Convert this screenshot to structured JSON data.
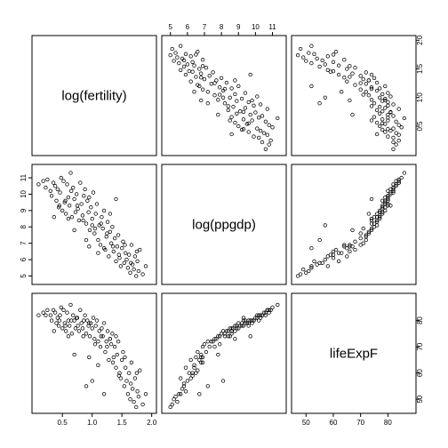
{
  "chart_data": {
    "type": "scatter",
    "layout": "scatterplot-matrix",
    "variables": [
      "log(fertility)",
      "log(ppgdp)",
      "lifeExpF"
    ],
    "ranges": {
      "log(fertility)": [
        0.05,
        2.02
      ],
      "log(ppgdp)": [
        4.7,
        11.6
      ],
      "lifeExpF": [
        46,
        89
      ]
    },
    "ticks": {
      "log(fertility)": [
        0.5,
        1.0,
        1.5,
        2.0
      ],
      "log(ppgdp)": [
        5,
        6,
        7,
        8,
        9,
        10,
        11
      ],
      "lifeExpF": [
        50,
        60,
        70,
        80
      ]
    },
    "tick_labels": {
      "log(fertility)": [
        "0.5",
        "1.0",
        "1.5",
        "2.0"
      ],
      "log(ppgdp)": [
        "5",
        "6",
        "7",
        "8",
        "9",
        "10",
        "11"
      ],
      "lifeExpF": [
        "50",
        "60",
        "70",
        "80"
      ]
    },
    "grid": false,
    "legend": "none",
    "observations": [
      [
        0.1,
        10.6,
        82
      ],
      [
        0.18,
        10.8,
        83
      ],
      [
        0.22,
        10.4,
        82
      ],
      [
        0.25,
        10.9,
        84
      ],
      [
        0.3,
        10.2,
        82
      ],
      [
        0.32,
        9.9,
        80
      ],
      [
        0.35,
        10.7,
        84
      ],
      [
        0.38,
        10.5,
        83
      ],
      [
        0.4,
        9.6,
        79
      ],
      [
        0.42,
        10.3,
        81
      ],
      [
        0.44,
        9.2,
        78
      ],
      [
        0.46,
        10.1,
        82
      ],
      [
        0.48,
        11.0,
        85
      ],
      [
        0.5,
        9.0,
        77
      ],
      [
        0.52,
        10.8,
        84
      ],
      [
        0.54,
        9.5,
        79
      ],
      [
        0.56,
        8.8,
        76
      ],
      [
        0.58,
        10.6,
        83
      ],
      [
        0.6,
        9.8,
        80
      ],
      [
        0.62,
        9.3,
        78
      ],
      [
        0.64,
        11.3,
        86
      ],
      [
        0.66,
        8.6,
        75
      ],
      [
        0.68,
        10.4,
        82
      ],
      [
        0.7,
        9.7,
        80
      ],
      [
        0.72,
        8.9,
        77
      ],
      [
        0.74,
        10.0,
        81
      ],
      [
        0.76,
        9.1,
        78
      ],
      [
        0.78,
        8.4,
        76
      ],
      [
        0.8,
        10.7,
        84
      ],
      [
        0.82,
        9.4,
        79
      ],
      [
        0.84,
        8.7,
        77
      ],
      [
        0.86,
        9.9,
        80
      ],
      [
        0.88,
        10.3,
        82
      ],
      [
        0.9,
        8.2,
        75
      ],
      [
        0.92,
        9.6,
        80
      ],
      [
        0.94,
        8.9,
        78
      ],
      [
        0.96,
        7.8,
        74
      ],
      [
        0.98,
        9.2,
        79
      ],
      [
        1.0,
        8.5,
        77
      ],
      [
        1.02,
        10.1,
        81
      ],
      [
        1.04,
        7.6,
        73
      ],
      [
        1.06,
        8.8,
        78
      ],
      [
        1.08,
        9.4,
        80
      ],
      [
        1.1,
        7.2,
        72
      ],
      [
        1.12,
        8.1,
        76
      ],
      [
        1.14,
        6.9,
        70
      ],
      [
        1.16,
        8.6,
        77
      ],
      [
        1.18,
        7.9,
        74
      ],
      [
        1.2,
        9.0,
        79
      ],
      [
        1.22,
        6.6,
        68
      ],
      [
        1.24,
        7.4,
        72
      ],
      [
        1.26,
        8.3,
        76
      ],
      [
        1.28,
        6.2,
        65
      ],
      [
        1.3,
        7.7,
        73
      ],
      [
        1.32,
        7.0,
        71
      ],
      [
        1.34,
        8.0,
        75
      ],
      [
        1.36,
        6.5,
        66
      ],
      [
        1.38,
        7.3,
        70
      ],
      [
        1.4,
        5.9,
        62
      ],
      [
        1.42,
        6.8,
        67
      ],
      [
        1.44,
        7.5,
        72
      ],
      [
        1.46,
        6.1,
        60
      ],
      [
        1.48,
        5.6,
        58
      ],
      [
        1.5,
        6.7,
        65
      ],
      [
        1.52,
        7.1,
        68
      ],
      [
        1.54,
        5.8,
        55
      ],
      [
        1.56,
        6.4,
        62
      ],
      [
        1.58,
        6.0,
        57
      ],
      [
        1.6,
        5.5,
        52
      ],
      [
        1.62,
        6.3,
        60
      ],
      [
        1.64,
        5.2,
        50
      ],
      [
        1.66,
        6.9,
        64
      ],
      [
        1.68,
        5.7,
        54
      ],
      [
        1.7,
        5.4,
        49
      ],
      [
        1.72,
        6.2,
        58
      ],
      [
        1.74,
        5.0,
        47
      ],
      [
        1.76,
        5.9,
        53
      ],
      [
        1.78,
        5.3,
        51
      ],
      [
        1.8,
        6.6,
        61
      ],
      [
        1.85,
        5.1,
        48
      ],
      [
        1.9,
        5.6,
        52
      ],
      [
        0.45,
        9.3,
        80
      ],
      [
        0.55,
        9.6,
        78
      ],
      [
        0.65,
        10.2,
        80
      ],
      [
        0.75,
        9.3,
        81
      ],
      [
        0.85,
        8.4,
        74
      ],
      [
        0.95,
        9.8,
        79
      ],
      [
        1.05,
        7.9,
        71
      ],
      [
        1.15,
        8.2,
        74
      ],
      [
        1.25,
        7.6,
        70
      ],
      [
        1.35,
        6.8,
        64
      ],
      [
        1.45,
        6.3,
        59
      ],
      [
        1.55,
        6.9,
        66
      ],
      [
        1.65,
        5.8,
        56
      ],
      [
        1.75,
        6.5,
        60
      ],
      [
        0.36,
        8.6,
        76
      ],
      [
        0.6,
        8.5,
        74
      ],
      [
        0.95,
        6.8,
        66
      ],
      [
        1.1,
        6.4,
        63
      ],
      [
        1.3,
        8.8,
        73
      ],
      [
        1.4,
        9.7,
        74
      ],
      [
        0.7,
        7.8,
        67
      ],
      [
        0.9,
        7.2,
        55
      ],
      [
        1.2,
        6.7,
        52
      ],
      [
        1.0,
        8.1,
        57
      ]
    ]
  }
}
